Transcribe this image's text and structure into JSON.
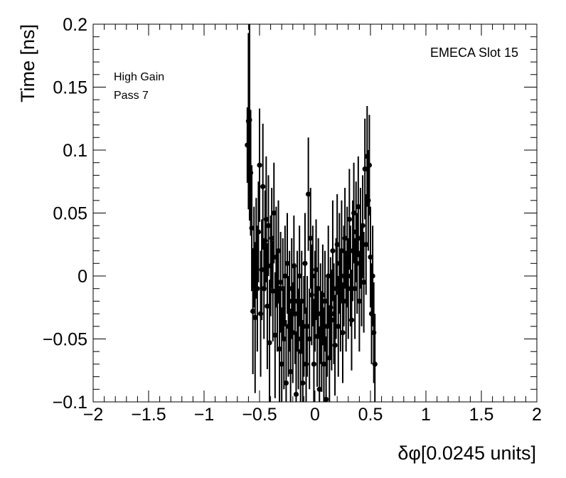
{
  "chart_data": {
    "type": "scatter",
    "xlabel": "δφ[0.0245 units]",
    "ylabel": "Time [ns]",
    "xlim": [
      -2,
      2
    ],
    "ylim": [
      -0.1,
      0.2
    ],
    "grid": false,
    "x_ticks": [
      -2,
      -1.5,
      -1,
      -0.5,
      0,
      0.5,
      1,
      1.5,
      2
    ],
    "x_tick_labels": [
      "−2",
      "−1.5",
      "−1",
      "−0.5",
      "0",
      "0.5",
      "1",
      "1.5",
      "2"
    ],
    "y_ticks": [
      -0.1,
      -0.05,
      0,
      0.05,
      0.1,
      0.15,
      0.2
    ],
    "y_tick_labels": [
      "−0.1",
      "−0.05",
      "0",
      "0.05",
      "0.1",
      "0.15",
      "0.2"
    ],
    "annotations": {
      "slot": "EMECA Slot 15",
      "gain": "High Gain",
      "pass": "Pass 7"
    },
    "series": [
      {
        "marker": "circle",
        "color": "#000000",
        "points": [
          {
            "x": -0.61,
            "y": 0.104,
            "err": 0.03
          },
          {
            "x": -0.6,
            "y": 0.123,
            "err": 0.07
          },
          {
            "x": -0.59,
            "y": 0.124,
            "err": 0.08
          },
          {
            "x": -0.58,
            "y": 0.082,
            "err": 0.05
          },
          {
            "x": -0.57,
            "y": 0.038,
            "err": 0.05
          },
          {
            "x": -0.56,
            "y": -0.028,
            "err": 0.05
          },
          {
            "x": -0.55,
            "y": 0.015,
            "err": 0.04
          },
          {
            "x": -0.54,
            "y": -0.033,
            "err": 0.06
          },
          {
            "x": -0.53,
            "y": 0.022,
            "err": 0.04
          },
          {
            "x": -0.52,
            "y": -0.01,
            "err": 0.05
          },
          {
            "x": -0.51,
            "y": 0.035,
            "err": 0.04
          },
          {
            "x": -0.5,
            "y": 0.088,
            "err": 0.045
          },
          {
            "x": -0.49,
            "y": -0.03,
            "err": 0.05
          },
          {
            "x": -0.48,
            "y": 0.005,
            "err": 0.04
          },
          {
            "x": -0.47,
            "y": 0.071,
            "err": 0.05
          },
          {
            "x": -0.46,
            "y": -0.01,
            "err": 0.04
          },
          {
            "x": -0.45,
            "y": 0.028,
            "err": 0.04
          },
          {
            "x": -0.44,
            "y": 0.045,
            "err": 0.05
          },
          {
            "x": -0.43,
            "y": -0.024,
            "err": 0.05
          },
          {
            "x": -0.42,
            "y": 0.04,
            "err": 0.04
          },
          {
            "x": -0.41,
            "y": -0.053,
            "err": 0.05
          },
          {
            "x": -0.4,
            "y": 0.008,
            "err": 0.04
          },
          {
            "x": -0.39,
            "y": 0.03,
            "err": 0.04
          },
          {
            "x": -0.38,
            "y": -0.012,
            "err": 0.04
          },
          {
            "x": -0.37,
            "y": 0.05,
            "err": 0.04
          },
          {
            "x": -0.36,
            "y": -0.047,
            "err": 0.05
          },
          {
            "x": -0.35,
            "y": 0.015,
            "err": 0.04
          },
          {
            "x": -0.34,
            "y": -0.02,
            "err": 0.04
          },
          {
            "x": -0.33,
            "y": 0.02,
            "err": 0.04
          },
          {
            "x": -0.32,
            "y": -0.058,
            "err": 0.05
          },
          {
            "x": -0.31,
            "y": -0.005,
            "err": 0.04
          },
          {
            "x": -0.3,
            "y": -0.07,
            "err": 0.045
          },
          {
            "x": -0.29,
            "y": -0.01,
            "err": 0.04
          },
          {
            "x": -0.28,
            "y": -0.05,
            "err": 0.04
          },
          {
            "x": -0.27,
            "y": 0.0,
            "err": 0.04
          },
          {
            "x": -0.26,
            "y": -0.085,
            "err": 0.05
          },
          {
            "x": -0.25,
            "y": 0.01,
            "err": 0.04
          },
          {
            "x": -0.24,
            "y": -0.04,
            "err": 0.04
          },
          {
            "x": -0.23,
            "y": -0.02,
            "err": 0.04
          },
          {
            "x": -0.22,
            "y": -0.076,
            "err": 0.05
          },
          {
            "x": -0.21,
            "y": -0.01,
            "err": 0.04
          },
          {
            "x": -0.2,
            "y": -0.045,
            "err": 0.04
          },
          {
            "x": -0.19,
            "y": 0.008,
            "err": 0.04
          },
          {
            "x": -0.18,
            "y": -0.03,
            "err": 0.04
          },
          {
            "x": -0.17,
            "y": -0.094,
            "err": 0.05
          },
          {
            "x": -0.16,
            "y": -0.02,
            "err": 0.04
          },
          {
            "x": -0.15,
            "y": -0.05,
            "err": 0.04
          },
          {
            "x": -0.14,
            "y": 0.0,
            "err": 0.04
          },
          {
            "x": -0.13,
            "y": -0.06,
            "err": 0.04
          },
          {
            "x": -0.12,
            "y": -0.02,
            "err": 0.04
          },
          {
            "x": -0.11,
            "y": -0.085,
            "err": 0.05
          },
          {
            "x": -0.1,
            "y": -0.04,
            "err": 0.04
          },
          {
            "x": -0.09,
            "y": 0.01,
            "err": 0.04
          },
          {
            "x": -0.08,
            "y": -0.07,
            "err": 0.045
          },
          {
            "x": -0.07,
            "y": -0.04,
            "err": 0.04
          },
          {
            "x": -0.06,
            "y": 0.065,
            "err": 0.045
          },
          {
            "x": -0.05,
            "y": -0.05,
            "err": 0.04
          },
          {
            "x": -0.04,
            "y": 0.03,
            "err": 0.04
          },
          {
            "x": -0.03,
            "y": -0.015,
            "err": 0.04
          },
          {
            "x": -0.02,
            "y": 0.0,
            "err": 0.04
          },
          {
            "x": -0.01,
            "y": -0.07,
            "err": 0.05
          },
          {
            "x": 0.0,
            "y": -0.02,
            "err": 0.04
          },
          {
            "x": 0.01,
            "y": 0.005,
            "err": 0.04
          },
          {
            "x": 0.02,
            "y": -0.048,
            "err": 0.04
          },
          {
            "x": 0.03,
            "y": -0.01,
            "err": 0.04
          },
          {
            "x": 0.04,
            "y": -0.09,
            "err": 0.05
          },
          {
            "x": 0.05,
            "y": -0.03,
            "err": 0.04
          },
          {
            "x": 0.06,
            "y": -0.052,
            "err": 0.04
          },
          {
            "x": 0.07,
            "y": -0.015,
            "err": 0.04
          },
          {
            "x": 0.08,
            "y": -0.07,
            "err": 0.045
          },
          {
            "x": 0.09,
            "y": -0.02,
            "err": 0.04
          },
          {
            "x": 0.1,
            "y": -0.098,
            "err": 0.05
          },
          {
            "x": 0.11,
            "y": -0.04,
            "err": 0.04
          },
          {
            "x": 0.12,
            "y": 0.0,
            "err": 0.04
          },
          {
            "x": 0.13,
            "y": -0.065,
            "err": 0.04
          },
          {
            "x": 0.14,
            "y": -0.025,
            "err": 0.04
          },
          {
            "x": 0.15,
            "y": -0.035,
            "err": 0.04
          },
          {
            "x": 0.16,
            "y": 0.02,
            "err": 0.04
          },
          {
            "x": 0.17,
            "y": -0.03,
            "err": 0.04
          },
          {
            "x": 0.18,
            "y": -0.055,
            "err": 0.04
          },
          {
            "x": 0.19,
            "y": -0.01,
            "err": 0.04
          },
          {
            "x": 0.2,
            "y": 0.025,
            "err": 0.04
          },
          {
            "x": 0.21,
            "y": -0.04,
            "err": 0.04
          },
          {
            "x": 0.22,
            "y": 0.01,
            "err": 0.04
          },
          {
            "x": 0.23,
            "y": -0.02,
            "err": 0.04
          },
          {
            "x": 0.24,
            "y": 0.02,
            "err": 0.04
          },
          {
            "x": 0.25,
            "y": -0.045,
            "err": 0.04
          },
          {
            "x": 0.26,
            "y": 0.0,
            "err": 0.04
          },
          {
            "x": 0.27,
            "y": 0.03,
            "err": 0.04
          },
          {
            "x": 0.28,
            "y": -0.02,
            "err": 0.04
          },
          {
            "x": 0.29,
            "y": 0.015,
            "err": 0.04
          },
          {
            "x": 0.3,
            "y": -0.01,
            "err": 0.04
          },
          {
            "x": 0.31,
            "y": 0.045,
            "err": 0.04
          },
          {
            "x": 0.32,
            "y": 0.0,
            "err": 0.04
          },
          {
            "x": 0.33,
            "y": -0.035,
            "err": 0.04
          },
          {
            "x": 0.34,
            "y": 0.02,
            "err": 0.04
          },
          {
            "x": 0.35,
            "y": 0.05,
            "err": 0.04
          },
          {
            "x": 0.36,
            "y": -0.01,
            "err": 0.04
          },
          {
            "x": 0.37,
            "y": 0.035,
            "err": 0.04
          },
          {
            "x": 0.38,
            "y": 0.01,
            "err": 0.04
          },
          {
            "x": 0.39,
            "y": 0.055,
            "err": 0.04
          },
          {
            "x": 0.4,
            "y": -0.02,
            "err": 0.04
          },
          {
            "x": 0.41,
            "y": 0.03,
            "err": 0.04
          },
          {
            "x": 0.42,
            "y": 0.0,
            "err": 0.04
          },
          {
            "x": 0.43,
            "y": 0.04,
            "err": 0.04
          },
          {
            "x": 0.44,
            "y": -0.005,
            "err": 0.04
          },
          {
            "x": 0.45,
            "y": 0.085,
            "err": 0.04
          },
          {
            "x": 0.46,
            "y": 0.025,
            "err": 0.04
          },
          {
            "x": 0.47,
            "y": 0.095,
            "err": 0.04
          },
          {
            "x": 0.48,
            "y": 0.06,
            "err": 0.04
          },
          {
            "x": 0.49,
            "y": 0.088,
            "err": 0.04
          },
          {
            "x": 0.5,
            "y": 0.015,
            "err": 0.04
          },
          {
            "x": 0.51,
            "y": -0.03,
            "err": 0.04
          },
          {
            "x": 0.52,
            "y": 0.0,
            "err": 0.04
          },
          {
            "x": 0.53,
            "y": -0.045,
            "err": 0.04
          },
          {
            "x": 0.54,
            "y": -0.07,
            "err": 0.04
          }
        ]
      }
    ]
  }
}
